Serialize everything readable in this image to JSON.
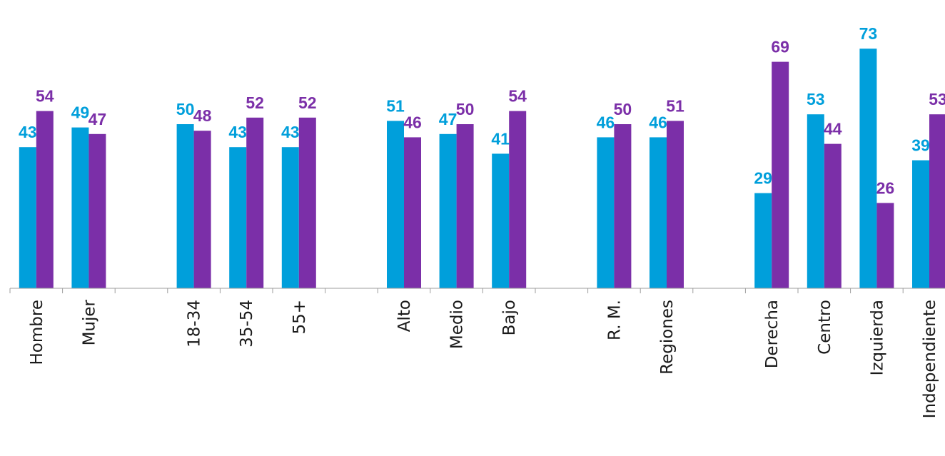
{
  "colors": {
    "series_a": "#009fdb",
    "series_b": "#7b2fa8",
    "axis": "#9e9e9e",
    "text": "#1a1a1a"
  },
  "chart_data": {
    "type": "bar",
    "categories": [
      "Hombre",
      "Mujer",
      "",
      "18-34",
      "35-54",
      "55+",
      "",
      "Alto",
      "Medio",
      "Bajo",
      "",
      "R. M.",
      "Regiones",
      "",
      "Derecha",
      "Centro",
      "Izquierda",
      "Independiente"
    ],
    "series": [
      {
        "color": "#009fdb",
        "values": [
          43,
          49,
          null,
          50,
          43,
          43,
          null,
          51,
          47,
          41,
          null,
          46,
          46,
          null,
          29,
          53,
          73,
          39
        ]
      },
      {
        "color": "#7b2fa8",
        "values": [
          54,
          47,
          null,
          48,
          52,
          52,
          null,
          46,
          50,
          54,
          null,
          50,
          51,
          null,
          69,
          44,
          26,
          53
        ]
      }
    ],
    "value_labels": true,
    "grid": false,
    "legend": "none",
    "ylim": [
      0,
      82
    ]
  }
}
